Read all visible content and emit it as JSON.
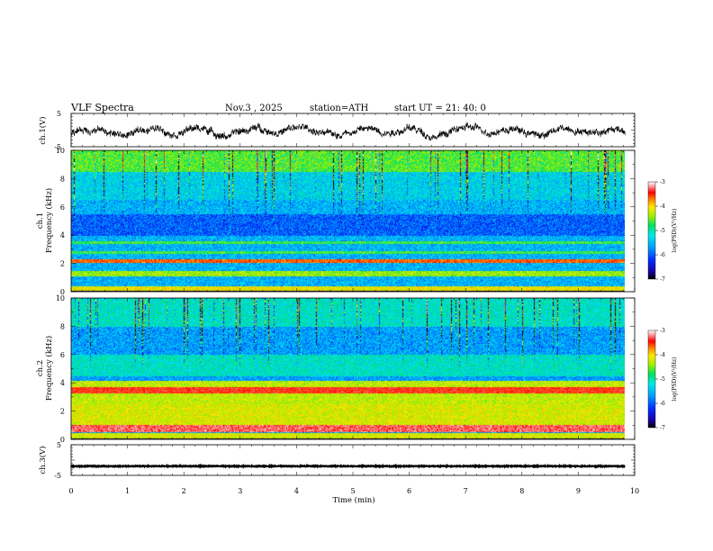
{
  "header": {
    "title": "VLF  Spectra",
    "date": "Nov.3  , 2025",
    "station": "station=ATH",
    "start": "start  UT  =   21: 40: 0"
  },
  "chart_data": {
    "type": "heatmap",
    "x": {
      "label": "Time  (min)",
      "range": [
        0,
        10
      ],
      "ticks": [
        "0",
        "1",
        "2",
        "3",
        "4",
        "5",
        "6",
        "7",
        "8",
        "9",
        "10"
      ],
      "data_end": 9.83
    },
    "panels": [
      {
        "kind": "waveform",
        "ylabel": "ch.1(V)",
        "yrange": [
          -5,
          5
        ],
        "ticks": [
          "5",
          "-5"
        ],
        "series_desc": "broadband signal, roughly -2 to +2 V"
      },
      {
        "kind": "spectrogram",
        "ylabel": "ch.1\nFrequency  (kHz)",
        "ylabel_lines": [
          "ch.1",
          "Frequency  (kHz)"
        ],
        "yrange": [
          0,
          10
        ],
        "ticks": [
          "0",
          "2",
          "4",
          "6",
          "8",
          "10"
        ],
        "colorbar": {
          "label": "log(PSD)(V²/Hz)",
          "range": [
            -7,
            -3
          ],
          "ticks": [
            "-3",
            "-4",
            "-5",
            "-6",
            "-7"
          ]
        }
      },
      {
        "kind": "spectrogram",
        "ylabel": "ch.2\nFrequency  (kHz)",
        "ylabel_lines": [
          "ch.2",
          "Frequency  (kHz)"
        ],
        "yrange": [
          0,
          10
        ],
        "ticks": [
          "0",
          "2",
          "4",
          "6",
          "8",
          "10"
        ],
        "colorbar": {
          "label": "log(PSD)(V²/Hz)",
          "range": [
            -7,
            -3
          ],
          "ticks": [
            "-3",
            "-4",
            "-5",
            "-6",
            "-7"
          ]
        }
      },
      {
        "kind": "waveform",
        "ylabel": "ch.3(V)",
        "yrange": [
          -5,
          5
        ],
        "ticks": [
          "5",
          "-5"
        ],
        "series_desc": "flat trace near -2 V"
      }
    ],
    "colormap": [
      "#000000",
      "#1a00a8",
      "#0030ff",
      "#00a0ff",
      "#00e8e8",
      "#00e060",
      "#a0f000",
      "#ffe800",
      "#ff8000",
      "#ff0000",
      "#ff9090",
      "#ffffff"
    ]
  }
}
